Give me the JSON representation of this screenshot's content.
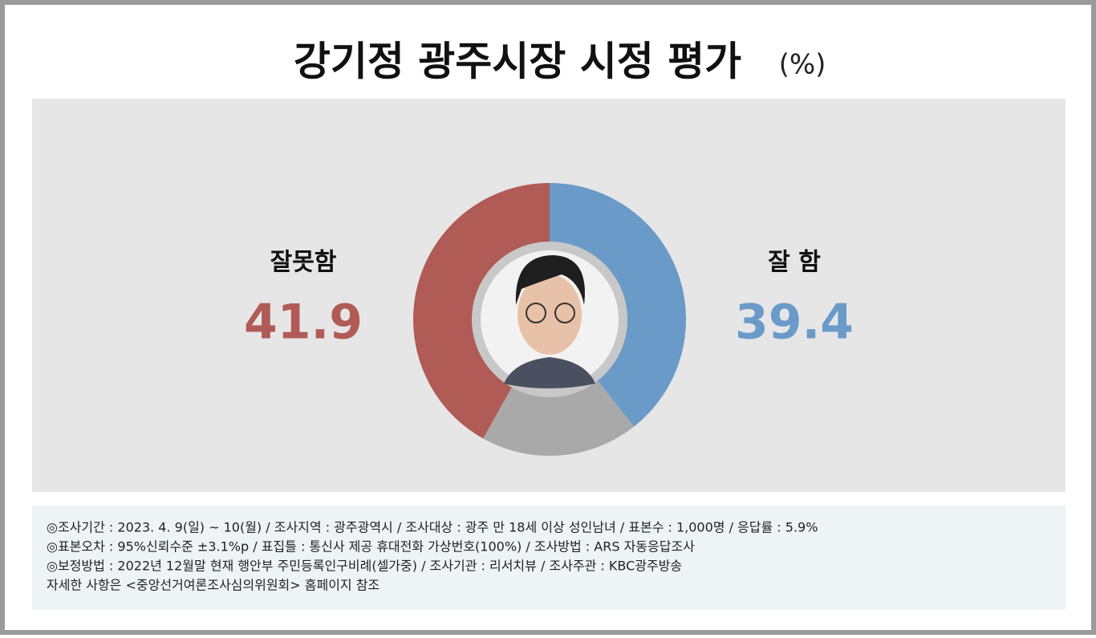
{
  "chart_data": {
    "type": "pie",
    "title": "강기정 광주시장 시정 평가",
    "unit": "(%)",
    "categories": [
      "잘 함",
      null,
      "잘못함"
    ],
    "values": [
      39.4,
      18.7,
      41.9
    ],
    "colors": [
      "#6a9bc8",
      "#a9a9a9",
      "#b05b55"
    ],
    "label_colors": [
      "#6a9bc8",
      null,
      "#b05b55"
    ],
    "donut": true
  },
  "notes": [
    "◎조사기간 : 2023. 4. 9(일) ~ 10(월) / 조사지역 : 광주광역시 / 조사대상 : 광주 만 18세 이상 성인남녀 / 표본수 : 1,000명 / 응답률 : 5.9%",
    "◎표본오차 : 95%신뢰수준 ±3.1%p  / 표집틀 : 통신사 제공 휴대전화 가상번호(100%) / 조사방법 : ARS 자동응답조사",
    "◎보정방법 : 2022년 12월말 현재 행안부 주민등록인구비례(셀가중) / 조사기관 : 리서치뷰 / 조사주관 : KBC광주방송",
    "자세한 사항은 <중앙선거여론조사심의위원회> 홈페이지 참조"
  ]
}
